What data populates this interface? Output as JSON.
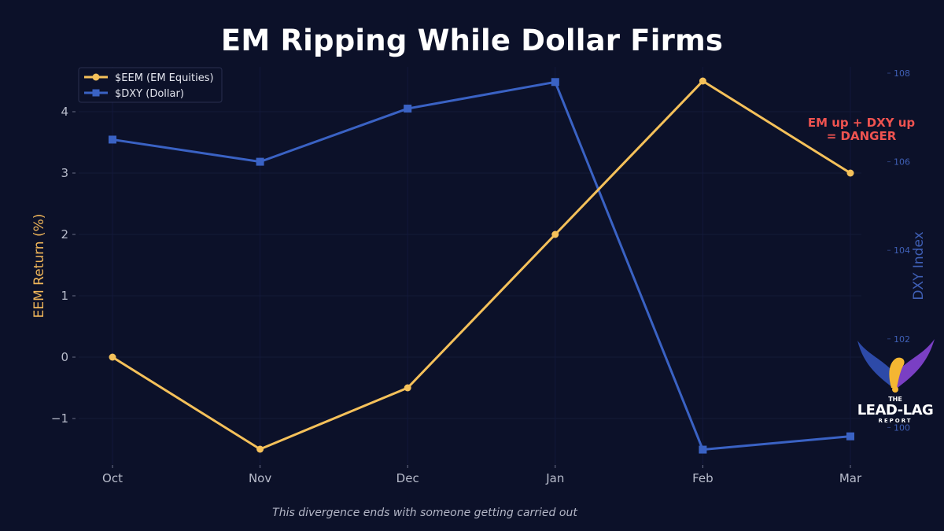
{
  "title": "EM Ripping While Dollar Firms",
  "footer": "This divergence ends with someone getting carried out",
  "annotation": [
    "EM up + DXY up",
    "= DANGER"
  ],
  "logo": {
    "the": "THE",
    "name": "LEAD-LAG",
    "sub": "REPORT"
  },
  "colors": {
    "background": "#0c1129",
    "eem": "#f5c15a",
    "dxy": "#3a62c4",
    "annotation": "#ef5350",
    "left_axis_label": "#f0b65a",
    "right_axis_label": "#3f5fb5"
  },
  "chart_data": {
    "type": "line",
    "title": "EM Ripping While Dollar Firms",
    "categories": [
      "Oct",
      "Nov",
      "Dec",
      "Jan",
      "Feb",
      "Mar"
    ],
    "series": [
      {
        "name": "$EEM (EM Equities)",
        "axis": "left",
        "marker": "circle",
        "values": [
          0,
          -1.5,
          -0.5,
          2.0,
          4.5,
          3.0
        ]
      },
      {
        "name": "$DXY (Dollar)",
        "axis": "right",
        "marker": "square",
        "values": [
          106.5,
          106.0,
          107.2,
          107.8,
          99.5,
          99.8
        ]
      }
    ],
    "xlabel": "",
    "ylabel": "EEM Return (%)",
    "ylabel_right": "DXY Index",
    "yticks": [
      -1,
      0,
      1,
      2,
      3,
      4
    ],
    "yticks_right": [
      100,
      102,
      104,
      106,
      108
    ],
    "ylim": [
      -1.75,
      4.65
    ],
    "ylim_right": [
      99.5,
      108.2
    ],
    "legend_position": "upper left",
    "annotations": [
      "EM up + DXY up = DANGER"
    ],
    "subtitle_footer": "This divergence ends with someone getting carried out"
  }
}
